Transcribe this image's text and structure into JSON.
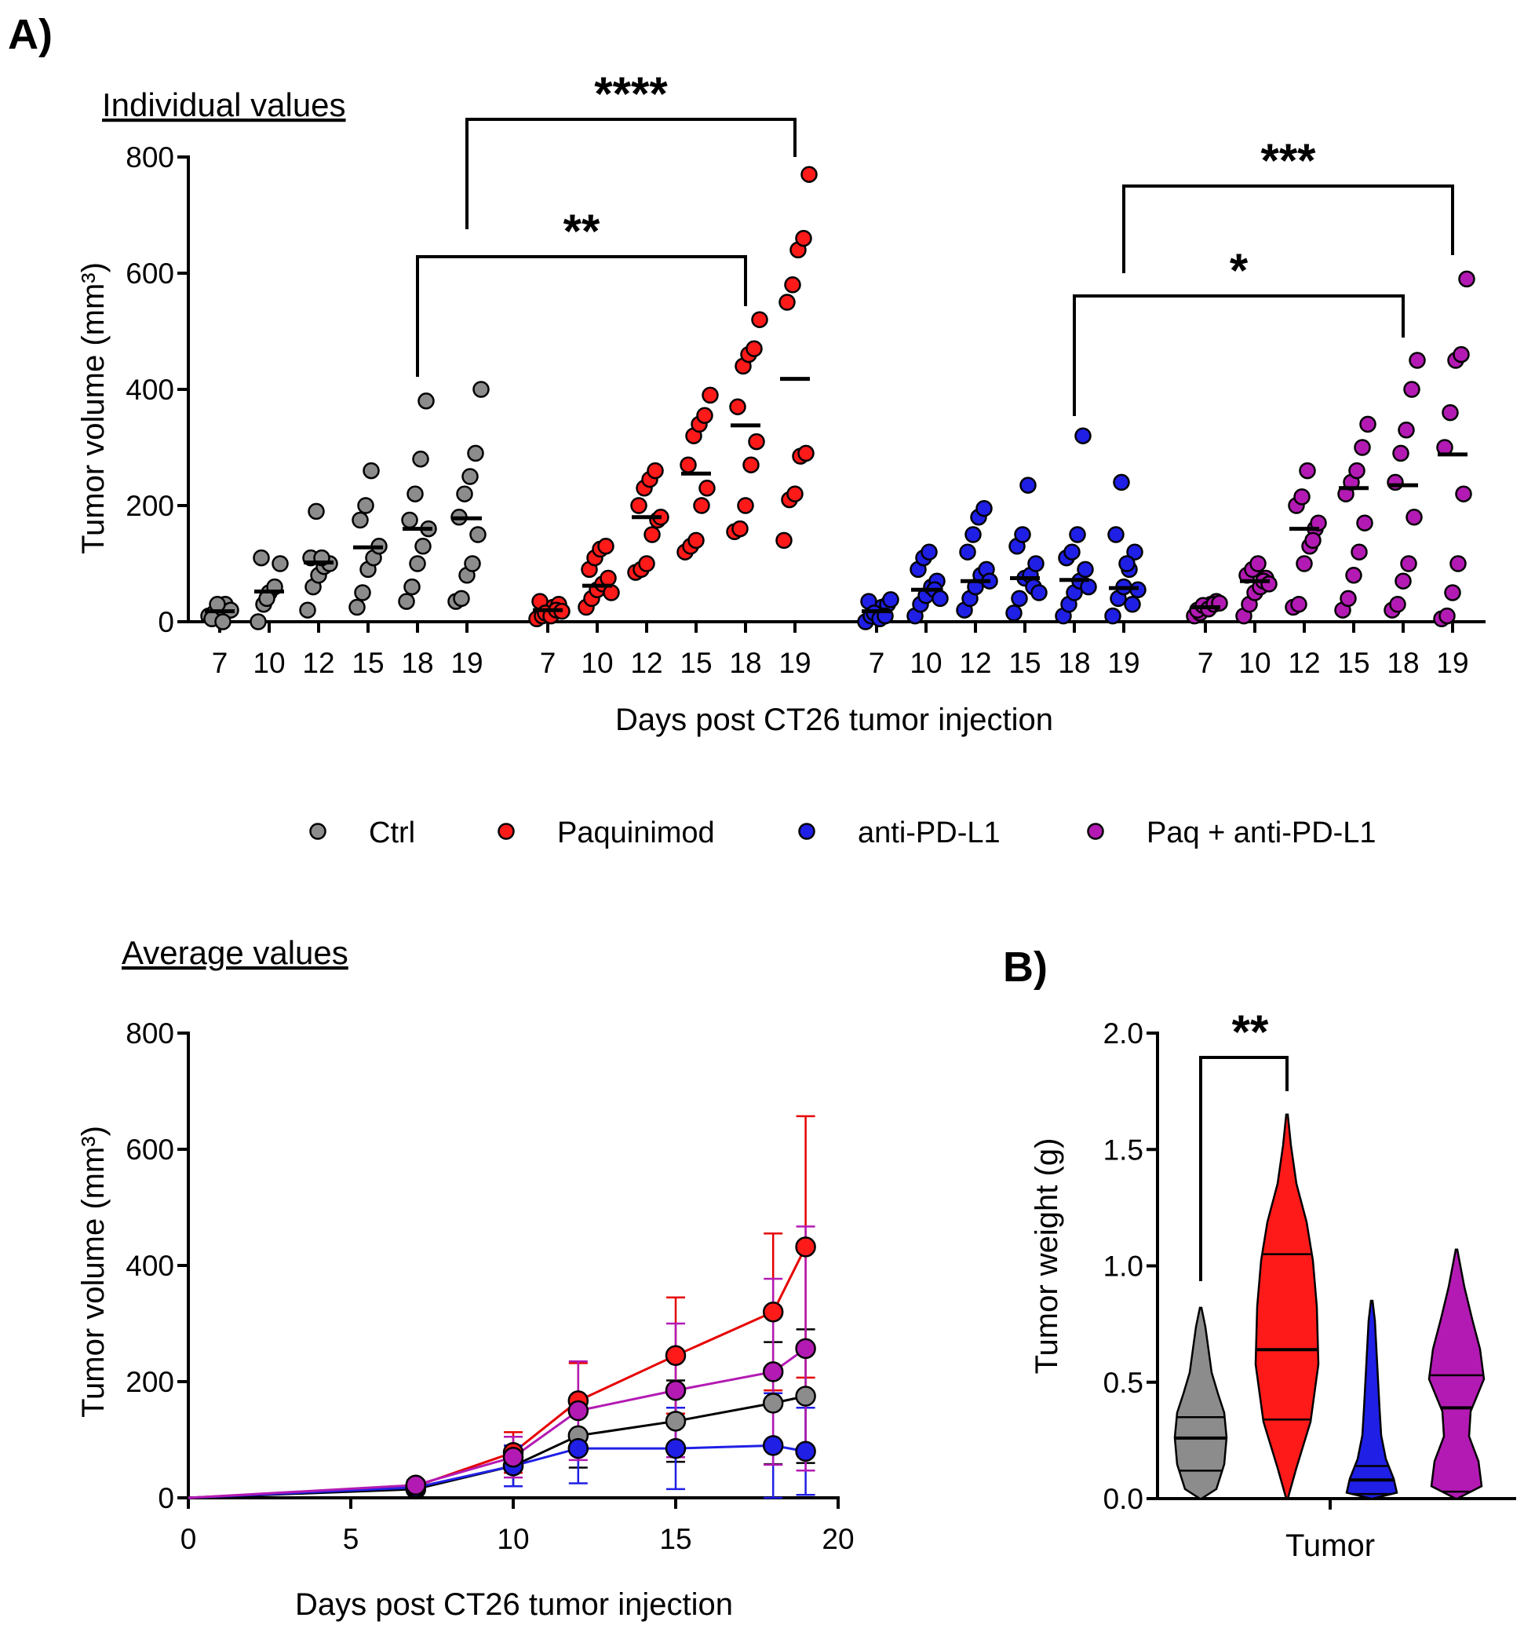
{
  "panel_a_label": "A)",
  "panel_b_label": "B)",
  "colors": {
    "Ctrl": "#8c8c8c",
    "Paquinimod": "#ff1a1a",
    "anti-PD-L1": "#1f1fe6",
    "Paq + anti-PD-L1": "#b31ab3"
  },
  "chart_data": [
    {
      "type": "scatter",
      "title": "Individual values",
      "xlabel": "Days post  CT26 tumor injection",
      "ylabel": "Tumor volume (mm³)",
      "ylim": [
        0,
        800
      ],
      "yticks": [
        0,
        200,
        400,
        600,
        800
      ],
      "days": [
        "7",
        "10",
        "12",
        "15",
        "18",
        "19"
      ],
      "groups": [
        {
          "name": "Ctrl",
          "points": [
            [
              10,
              15,
              25,
              30,
              20,
              5,
              30,
              0
            ],
            [
              0,
              30,
              50,
              60,
              100,
              110,
              40
            ],
            [
              20,
              60,
              80,
              95,
              100,
              110,
              190,
              110
            ],
            [
              25,
              50,
              90,
              110,
              130,
              175,
              200,
              260
            ],
            [
              35,
              60,
              100,
              130,
              160,
              175,
              220,
              280,
              380
            ],
            [
              35,
              40,
              80,
              100,
              150,
              180,
              220,
              250,
              290,
              400
            ]
          ],
          "means": [
            18,
            52,
            102,
            128,
            160,
            178
          ]
        },
        {
          "name": "Paquinimod",
          "points": [
            [
              5,
              10,
              20,
              25,
              30,
              35,
              15,
              10,
              20,
              18
            ],
            [
              25,
              40,
              55,
              65,
              75,
              90,
              110,
              125,
              130,
              50
            ],
            [
              85,
              90,
              100,
              150,
              175,
              200,
              230,
              245,
              260,
              180
            ],
            [
              120,
              130,
              140,
              200,
              230,
              270,
              320,
              340,
              355,
              390
            ],
            [
              155,
              160,
              200,
              270,
              310,
              370,
              440,
              460,
              470,
              520
            ],
            [
              140,
              210,
              220,
              285,
              290,
              550,
              580,
              640,
              660,
              770
            ]
          ],
          "means": [
            20,
            62,
            180,
            255,
            338,
            418
          ]
        },
        {
          "name": "anti-PD-L1",
          "points": [
            [
              0,
              10,
              20,
              25,
              30,
              35,
              15,
              5,
              10,
              38
            ],
            [
              10,
              30,
              45,
              60,
              70,
              90,
              110,
              120,
              55,
              40
            ],
            [
              20,
              40,
              60,
              80,
              90,
              120,
              150,
              180,
              195,
              70
            ],
            [
              15,
              40,
              75,
              80,
              100,
              130,
              150,
              235,
              60,
              50
            ],
            [
              10,
              30,
              50,
              70,
              90,
              110,
              120,
              150,
              320,
              60
            ],
            [
              10,
              40,
              60,
              90,
              120,
              150,
              240,
              100,
              30,
              55
            ]
          ],
          "means": [
            18,
            55,
            70,
            75,
            72,
            58
          ]
        },
        {
          "name": "Paq + anti-PD-L1",
          "points": [
            [
              10,
              15,
              25,
              30,
              35,
              20,
              28,
              22,
              30,
              32
            ],
            [
              10,
              30,
              50,
              60,
              75,
              80,
              90,
              100,
              70,
              65
            ],
            [
              25,
              30,
              100,
              130,
              160,
              200,
              215,
              260,
              140,
              170
            ],
            [
              20,
              40,
              80,
              120,
              170,
              220,
              240,
              260,
              300,
              340
            ],
            [
              20,
              30,
              70,
              100,
              180,
              240,
              290,
              330,
              400,
              450
            ],
            [
              5,
              10,
              50,
              100,
              220,
              300,
              360,
              450,
              460,
              590
            ]
          ],
          "means": [
            25,
            70,
            160,
            230,
            235,
            288
          ]
        }
      ],
      "comparisons": [
        {
          "label": "****",
          "from": "Paquinimod day 19",
          "to": "Ctrl day 19"
        },
        {
          "label": "**",
          "from": "Ctrl day 18",
          "to": "Paquinimod day 18"
        },
        {
          "label": "***",
          "from": "anti-PD-L1 day 19",
          "to": "Paq + anti-PD-L1 day 19"
        },
        {
          "label": "*",
          "from": "anti-PD-L1 day 18",
          "to": "Paq + anti-PD-L1 day 18"
        }
      ]
    },
    {
      "type": "line",
      "title": "Average values",
      "xlabel": "Days post  CT26 tumor injection",
      "ylabel": "Tumor volume (mm³)",
      "xlim": [
        0,
        20
      ],
      "ylim": [
        0,
        800
      ],
      "xticks": [
        0,
        5,
        10,
        15,
        20
      ],
      "yticks": [
        0,
        200,
        400,
        600,
        800
      ],
      "x": [
        0,
        7,
        10,
        12,
        15,
        18,
        19
      ],
      "series": [
        {
          "name": "Ctrl",
          "values": [
            0,
            15,
            55,
            107,
            132,
            163,
            175
          ],
          "sd": [
            0,
            5,
            35,
            55,
            70,
            105,
            115
          ]
        },
        {
          "name": "Paquinimod",
          "values": [
            0,
            20,
            78,
            167,
            245,
            320,
            432
          ],
          "sd": [
            0,
            8,
            35,
            65,
            100,
            135,
            225
          ]
        },
        {
          "name": "anti-PD-L1",
          "values": [
            0,
            18,
            55,
            85,
            85,
            90,
            80
          ],
          "sd": [
            0,
            8,
            35,
            60,
            70,
            90,
            75
          ]
        },
        {
          "name": "Paq + anti-PD-L1",
          "values": [
            0,
            22,
            70,
            150,
            185,
            217,
            257
          ],
          "sd": [
            0,
            8,
            35,
            85,
            115,
            160,
            210
          ]
        }
      ]
    },
    {
      "type": "violin",
      "xlabel": "Tumor",
      "ylabel": "Tumor weight (g)",
      "ylim": [
        0,
        2.0
      ],
      "yticks": [
        "0.0",
        "0.5",
        "1.0",
        "1.5",
        "2.0"
      ],
      "groups": [
        {
          "name": "Ctrl",
          "min": 0.0,
          "max": 0.82,
          "quartiles": [
            0.12,
            0.26,
            0.35
          ]
        },
        {
          "name": "Paquinimod",
          "min": 0.0,
          "max": 1.65,
          "quartiles": [
            0.34,
            0.64,
            1.05
          ]
        },
        {
          "name": "anti-PD-L1",
          "min": 0.0,
          "max": 0.85,
          "quartiles": [
            0.02,
            0.08,
            0.14
          ]
        },
        {
          "name": "Paq + anti-PD-L1",
          "min": 0.0,
          "max": 1.07,
          "quartiles": [
            0.03,
            0.39,
            0.53
          ]
        }
      ],
      "comparisons": [
        {
          "label": "**",
          "from": "Ctrl",
          "to": "Paquinimod"
        }
      ]
    }
  ]
}
